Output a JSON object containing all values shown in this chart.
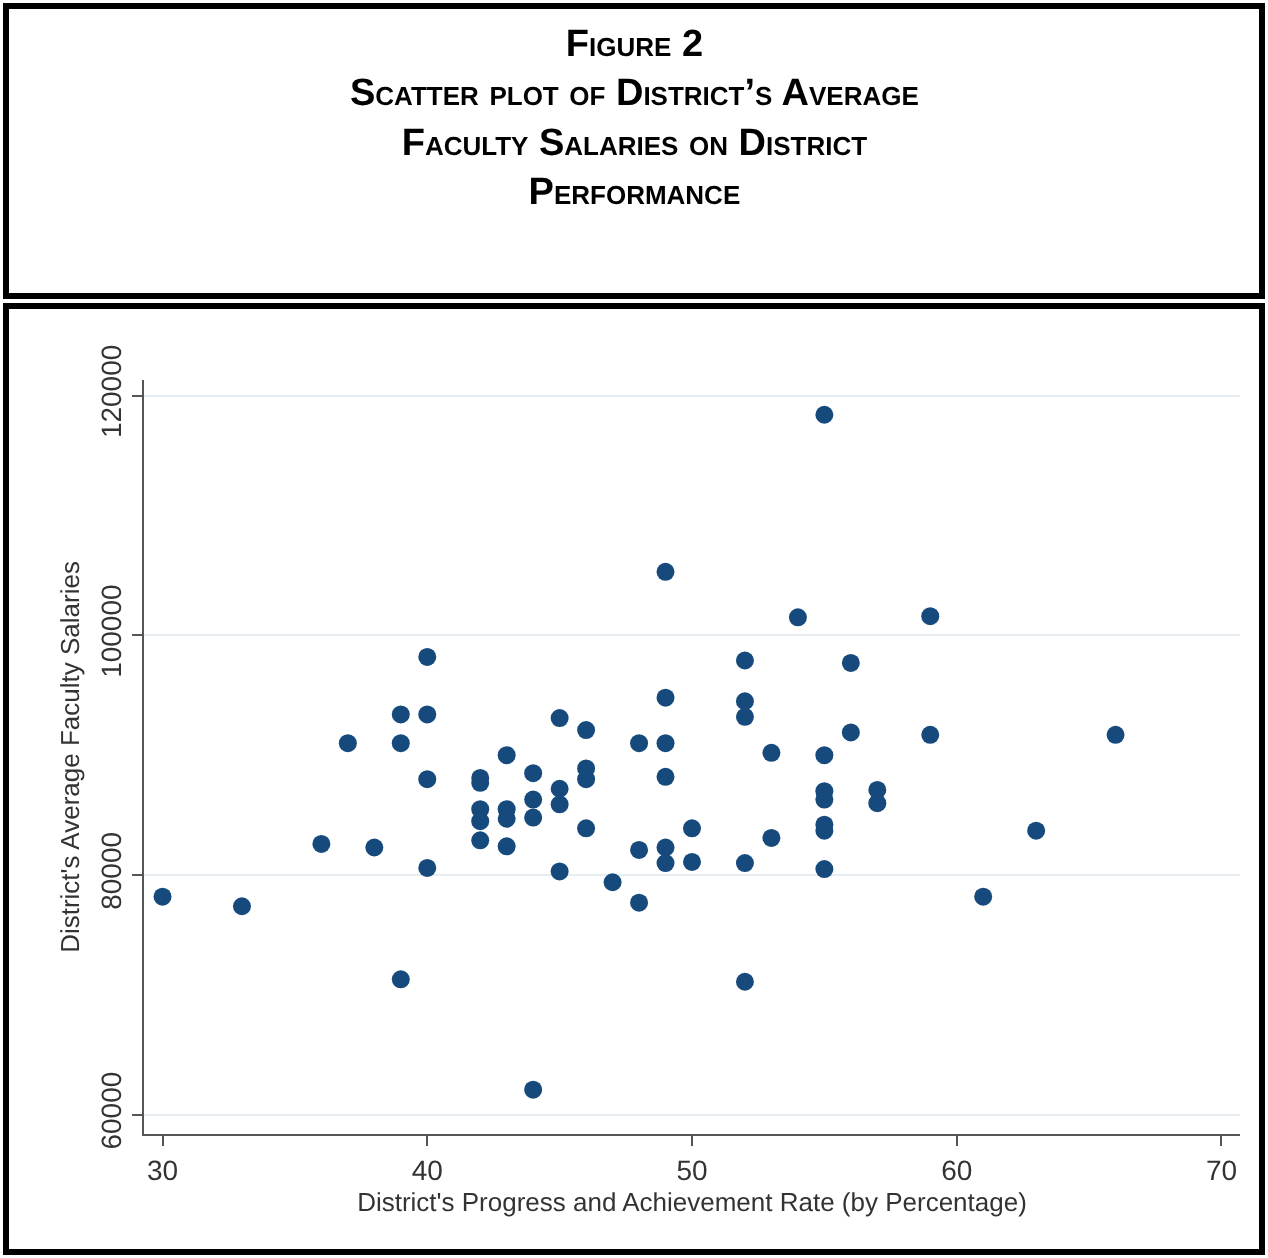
{
  "chart_data": {
    "type": "scatter",
    "title": "Figure 2",
    "subtitle": "Scatter plot of District’s Average Faculty Salaries on District Performance",
    "xlabel": "District's Progress and Achievement Rate (by Percentage)",
    "ylabel": "District's Average Faculty Salaries",
    "xlim": [
      29.3,
      70.7
    ],
    "ylim": [
      58400,
      121300
    ],
    "xticks": [
      30,
      40,
      50,
      60,
      70
    ],
    "yticks": [
      60000,
      80000,
      100000,
      120000
    ],
    "grid": "y",
    "marker": "circle",
    "series": [
      {
        "color": "#174a7c",
        "x": [
          30,
          33,
          36,
          38,
          37,
          39,
          39,
          39,
          40,
          40,
          40,
          40,
          42,
          42,
          42,
          42,
          42,
          43,
          43,
          43,
          43,
          44,
          44,
          44,
          44,
          45,
          45,
          45,
          45,
          46,
          46,
          46,
          46,
          47,
          48,
          48,
          48,
          49,
          49,
          49,
          49,
          49,
          49,
          50,
          50,
          52,
          52,
          52,
          52,
          52,
          53,
          53,
          54,
          55,
          55,
          55,
          55,
          55,
          55,
          55,
          56,
          56,
          57,
          57,
          59,
          59,
          61,
          63,
          66
        ],
        "values": [
          78200,
          77400,
          82600,
          82300,
          91000,
          93400,
          91000,
          71300,
          98200,
          93400,
          88000,
          80600,
          88100,
          87700,
          85500,
          84500,
          82900,
          90000,
          85500,
          84700,
          82400,
          88500,
          86300,
          84800,
          62100,
          93100,
          87200,
          85900,
          80300,
          92100,
          88900,
          88000,
          83900,
          79400,
          91000,
          82100,
          77700,
          105300,
          94800,
          91000,
          88200,
          82300,
          81000,
          83900,
          81100,
          97900,
          94500,
          93200,
          81000,
          71100,
          90200,
          83100,
          101500,
          118400,
          90000,
          87000,
          86300,
          84200,
          83700,
          80500,
          97700,
          91900,
          87100,
          86000,
          101600,
          91700,
          78200,
          83700,
          91700
        ]
      }
    ]
  }
}
